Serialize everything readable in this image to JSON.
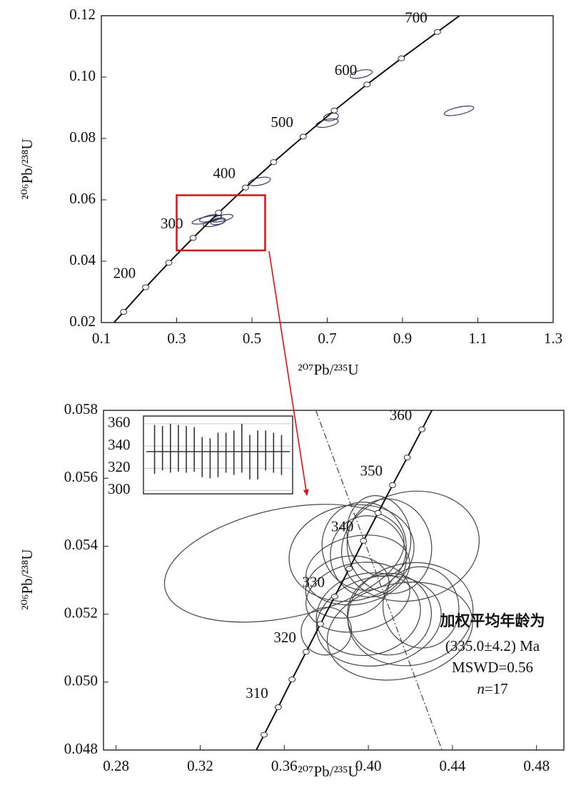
{
  "chart_data": [
    {
      "type": "concordia",
      "xlabel": "²⁰⁷Pb/²³⁵U",
      "ylabel": "²⁰⁶Pb/²³⁸U",
      "xlim": [
        0.1,
        1.3
      ],
      "ylim": [
        0.02,
        0.12
      ],
      "xticks": [
        0.1,
        0.3,
        0.5,
        0.7,
        0.9,
        1.1,
        1.3
      ],
      "yticks": [
        0.02,
        0.04,
        0.06,
        0.08,
        {
          "value": 0.1,
          "label": "0.10"
        },
        0.12
      ],
      "concordia": {
        "x": [
          0.1592,
          0.2177,
          0.2791,
          0.3437,
          0.4115,
          0.4828,
          0.5577,
          0.6362,
          0.7189,
          0.8056,
          0.8968,
          0.9925
        ],
        "y": [
          0.0235,
          0.0315,
          0.0395,
          0.0476,
          0.0558,
          0.064,
          0.0723,
          0.0806,
          0.0891,
          0.0976,
          0.1061,
          0.1147
        ],
        "labels": [
          null,
          "200",
          null,
          "300",
          null,
          "400",
          null,
          "500",
          null,
          "600",
          null,
          "700"
        ]
      },
      "ellipses": {
        "x": [
          0.38,
          0.39,
          0.4,
          0.41,
          0.42,
          0.52,
          0.7,
          0.71,
          0.79,
          1.05
        ],
        "y": [
          0.0535,
          0.054,
          0.0525,
          0.053,
          0.054,
          0.066,
          0.085,
          0.087,
          0.101,
          0.089
        ],
        "rx": [
          0.04,
          0.03,
          0.03,
          0.02,
          0.03,
          0.03,
          0.03,
          0.02,
          0.03,
          0.04
        ],
        "ry": [
          0.001,
          0.001,
          0.001,
          0.001,
          0.001,
          0.0012,
          0.0012,
          0.0012,
          0.0012,
          0.0012
        ]
      },
      "ellipse_color": "#3a3a6a",
      "zoom_box": {
        "x": [
          0.3,
          0.535
        ],
        "y": [
          0.0435,
          0.0615
        ],
        "color": "#e01010"
      }
    },
    {
      "type": "concordia",
      "xlabel": "²⁰⁷Pb/²³⁵U",
      "ylabel": "²⁰⁶Pb/²³⁸U",
      "xlim": [
        0.274,
        0.493
      ],
      "ylim": [
        0.048,
        0.058
      ],
      "xticks": [
        0.28,
        0.32,
        0.36,
        {
          "value": 0.4,
          "label": "0.40"
        },
        0.44,
        0.48
      ],
      "yticks": [
        0.048,
        {
          "value": 0.05,
          "label": "0.050"
        },
        0.052,
        0.054,
        0.056,
        0.058
      ],
      "concordia": {
        "x": [
          0.3504,
          0.3571,
          0.3637,
          0.3704,
          0.3772,
          0.384,
          0.3909,
          0.3977,
          0.4046,
          0.4115,
          0.4185,
          0.4255
        ],
        "y": [
          0.04845,
          0.04926,
          0.05008,
          0.05089,
          0.05171,
          0.05252,
          0.05334,
          0.05416,
          0.05498,
          0.0558,
          0.05661,
          0.05744
        ],
        "labels": [
          null,
          "310",
          null,
          "320",
          null,
          "330",
          null,
          "340",
          null,
          "350",
          null,
          "360"
        ]
      },
      "ellipses": {
        "x": [
          0.36,
          0.392,
          0.398,
          0.4,
          0.405,
          0.41,
          0.42,
          0.395,
          0.39,
          0.4,
          0.405,
          0.41,
          0.415,
          0.42,
          0.38,
          0.395,
          0.425
        ],
        "y": [
          0.0535,
          0.0538,
          0.054,
          0.0537,
          0.0543,
          0.054,
          0.054,
          0.0533,
          0.0528,
          0.052,
          0.0518,
          0.052,
          0.0515,
          0.052,
          0.0515,
          0.0525,
          0.0522
        ],
        "rx": [
          0.058,
          0.03,
          0.02,
          0.018,
          0.015,
          0.02,
          0.033,
          0.025,
          0.02,
          0.025,
          0.03,
          0.02,
          0.035,
          0.03,
          0.012,
          0.025,
          0.018
        ],
        "ry": [
          0.0016,
          0.0014,
          0.0013,
          0.0012,
          0.0012,
          0.0014,
          0.0016,
          0.001,
          0.0009,
          0.0012,
          0.0013,
          0.0012,
          0.0014,
          0.0015,
          0.0007,
          0.001,
          0.0012
        ]
      },
      "ellipse_color": "#444",
      "reference_line": {
        "x": [
          0.375,
          0.435
        ],
        "y": [
          0.058,
          0.048
        ]
      },
      "annotation": {
        "title": "加权平均年龄为",
        "age": "(335.0±4.2) Ma",
        "mswd": "MSWD=0.56",
        "n_symbol": "n",
        "n_value": "=17"
      }
    },
    {
      "type": "errorbar",
      "ylim": [
        297,
        367
      ],
      "yticks": [
        300,
        320,
        340,
        360
      ],
      "grid": true,
      "values": [
        337,
        338,
        338,
        338,
        337,
        337,
        330,
        329,
        332,
        334,
        334,
        338,
        330,
        332,
        336,
        334,
        332
      ],
      "errors": [
        22,
        20,
        22,
        21,
        21,
        20,
        18,
        18,
        20,
        18,
        20,
        22,
        20,
        22,
        18,
        18,
        18
      ],
      "mean": 335
    }
  ]
}
